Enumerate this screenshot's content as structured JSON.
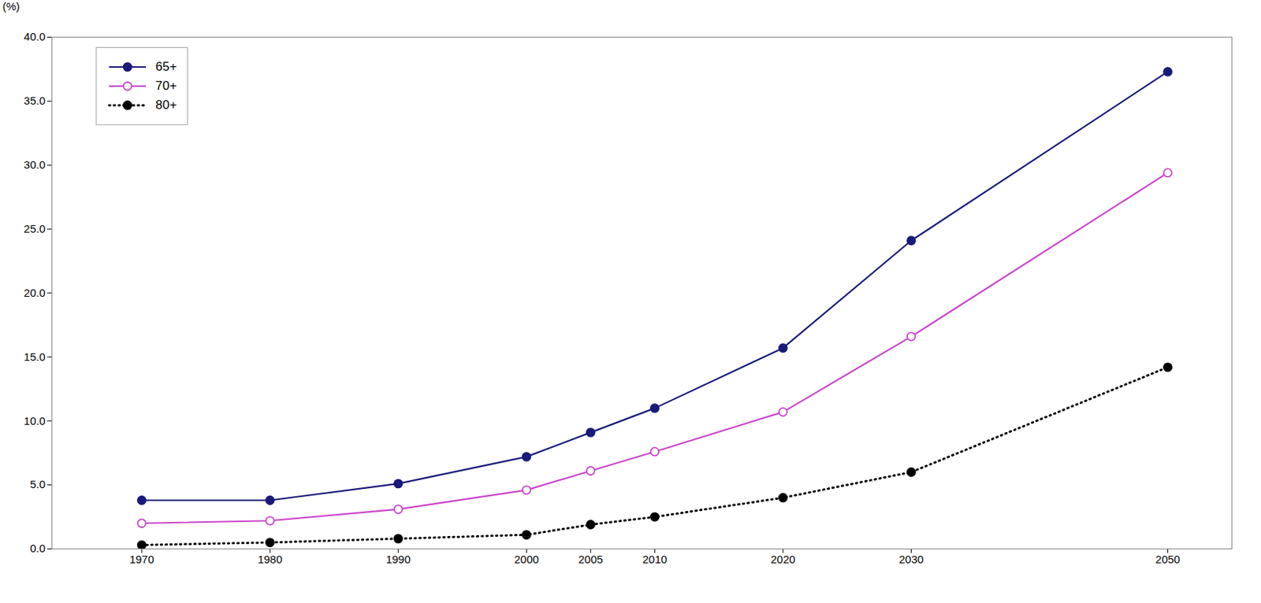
{
  "chart_data": {
    "type": "line",
    "x": [
      1970,
      1980,
      1990,
      2000,
      2005,
      2010,
      2020,
      2030,
      2050
    ],
    "series": [
      {
        "name": "65+",
        "color": "#1a1a7a",
        "marker": "circle",
        "line_style": "solid",
        "values": [
          3.8,
          3.8,
          5.1,
          7.2,
          9.1,
          11.0,
          15.7,
          24.1,
          37.3
        ]
      },
      {
        "name": "70+",
        "color": "#cc44cc",
        "marker": "ring",
        "line_style": "solid",
        "values": [
          2.0,
          2.2,
          3.1,
          4.6,
          6.1,
          7.6,
          10.7,
          16.6,
          29.4
        ]
      },
      {
        "name": "80+",
        "color": "#000000",
        "marker": "circle",
        "line_style": "dotted",
        "values": [
          0.3,
          0.5,
          0.8,
          1.1,
          1.9,
          2.5,
          4.0,
          6.0,
          14.2
        ]
      }
    ],
    "xlim": [
      1963,
      2055
    ],
    "xticks": [
      1970,
      1980,
      1990,
      2000,
      2005,
      2010,
      2020,
      2030,
      2050
    ],
    "ylim": [
      0,
      40
    ],
    "yticks": [
      {
        "value": 0,
        "label": "0.0"
      },
      {
        "value": 5,
        "label": "5.0"
      },
      {
        "value": 10,
        "label": "10.0"
      },
      {
        "value": 15,
        "label": "15.0"
      },
      {
        "value": 20,
        "label": "20.0"
      },
      {
        "value": 25,
        "label": "25.0"
      },
      {
        "value": 30,
        "label": "30.0"
      },
      {
        "value": 35,
        "label": "35.0"
      },
      {
        "value": 40,
        "label": "40.0"
      }
    ],
    "ylabel": "(%)",
    "grid": false,
    "legend": "upper left"
  }
}
